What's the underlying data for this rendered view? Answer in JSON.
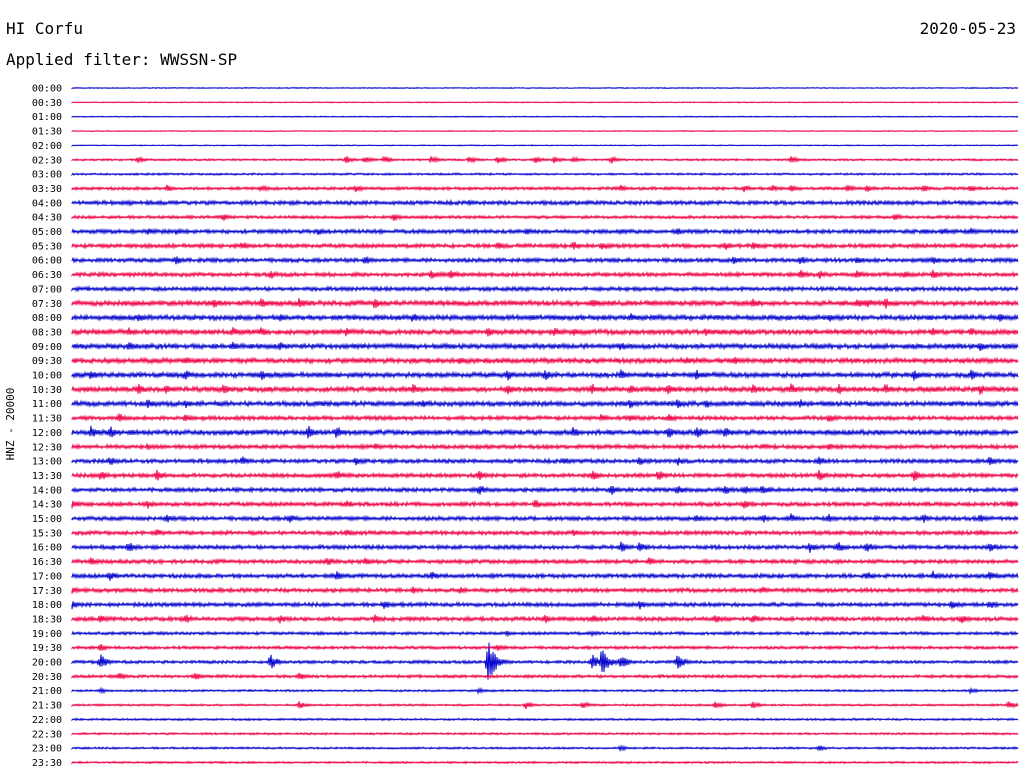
{
  "header": {
    "station": "HI Corfu",
    "date": "2020-05-23",
    "filter_text": "Applied filter: WWSSN-SP"
  },
  "colors": {
    "trace_a": "#0000cc",
    "trace_b": "#ee0044",
    "text": "#000000",
    "background": "#ffffff"
  },
  "chart_data": {
    "type": "seismogram-helicorder",
    "ylabel": "HNZ - 20000",
    "row_labels": [
      "00:00",
      "00:30",
      "01:00",
      "01:30",
      "02:00",
      "02:30",
      "03:00",
      "03:30",
      "04:00",
      "04:30",
      "05:00",
      "05:30",
      "06:00",
      "06:30",
      "07:00",
      "07:30",
      "08:00",
      "08:30",
      "09:00",
      "09:30",
      "10:00",
      "10:30",
      "11:00",
      "11:30",
      "12:00",
      "12:30",
      "13:00",
      "13:30",
      "14:00",
      "14:30",
      "15:00",
      "15:30",
      "16:00",
      "16:30",
      "17:00",
      "17:30",
      "18:00",
      "18:30",
      "19:00",
      "19:30",
      "20:00",
      "20:30",
      "21:00",
      "21:30",
      "22:00",
      "22:30",
      "23:00",
      "23:30"
    ],
    "noise_level": [
      1,
      1,
      1,
      1,
      1,
      2,
      2,
      3,
      4,
      3,
      4,
      4,
      4,
      4,
      4,
      5,
      5,
      5,
      5,
      5,
      5,
      5,
      5,
      4,
      5,
      4,
      4,
      4,
      4,
      4,
      4,
      4,
      4,
      4,
      4,
      4,
      4,
      4,
      3,
      3,
      3,
      3,
      2,
      2,
      2,
      2,
      2,
      2
    ],
    "events": [
      {
        "row": 5,
        "t": [
          0.07,
          0.29,
          0.31,
          0.33,
          0.38,
          0.42,
          0.45,
          0.49,
          0.51,
          0.53,
          0.57,
          0.76
        ],
        "amp": 4
      },
      {
        "row": 7,
        "t": [
          0.1,
          0.2,
          0.3,
          0.58,
          0.71,
          0.74,
          0.76,
          0.82,
          0.84,
          0.9,
          0.95
        ],
        "amp": 4
      },
      {
        "row": 8,
        "t": [
          0.06,
          0.08,
          0.42,
          0.62
        ],
        "amp": 3
      },
      {
        "row": 9,
        "t": [
          0.16,
          0.34,
          0.87
        ],
        "amp": 4
      },
      {
        "row": 10,
        "t": [
          0.08,
          0.11,
          0.26,
          0.48,
          0.58,
          0.64,
          0.9,
          0.92,
          0.95
        ],
        "amp": 4
      },
      {
        "row": 11,
        "t": [
          0.18,
          0.45,
          0.53,
          0.56,
          0.69,
          0.72
        ],
        "amp": 5
      },
      {
        "row": 12,
        "t": [
          0.11,
          0.31,
          0.7,
          0.77,
          0.83,
          0.91
        ],
        "amp": 5
      },
      {
        "row": 13,
        "t": [
          0.21,
          0.38,
          0.4,
          0.77,
          0.79,
          0.83,
          0.88,
          0.91
        ],
        "amp": 5
      },
      {
        "row": 15,
        "t": [
          0.15,
          0.2,
          0.24,
          0.32,
          0.55,
          0.72,
          0.83,
          0.84,
          0.86
        ],
        "amp": 6
      },
      {
        "row": 16,
        "t": [
          0.07,
          0.22,
          0.36,
          0.59,
          0.8,
          0.98
        ],
        "amp": 5
      },
      {
        "row": 17,
        "t": [
          0.06,
          0.17,
          0.2,
          0.29,
          0.44,
          0.51,
          0.53,
          0.67,
          0.91,
          0.95
        ],
        "amp": 5
      },
      {
        "row": 18,
        "t": [
          0.06,
          0.17,
          0.22,
          0.58,
          0.96
        ],
        "amp": 5
      },
      {
        "row": 19,
        "t": [
          0.12,
          0.41,
          0.65,
          0.7
        ],
        "amp": 5
      },
      {
        "row": 20,
        "t": [
          0.02,
          0.12,
          0.2,
          0.46,
          0.5,
          0.58,
          0.66,
          0.89,
          0.95
        ],
        "amp": 6
      },
      {
        "row": 21,
        "t": [
          0.07,
          0.1,
          0.16,
          0.36,
          0.46,
          0.55,
          0.59,
          0.63,
          0.72,
          0.76,
          0.81,
          0.86,
          0.96
        ],
        "amp": 6
      },
      {
        "row": 22,
        "t": [
          0.08,
          0.12,
          0.37,
          0.59,
          0.64,
          0.67,
          0.77
        ],
        "amp": 5
      },
      {
        "row": 23,
        "t": [
          0.05,
          0.12,
          0.56,
          0.59,
          0.63,
          0.8
        ],
        "amp": 5
      },
      {
        "row": 24,
        "t": [
          0.02,
          0.04,
          0.25,
          0.28,
          0.53,
          0.63,
          0.66,
          0.69
        ],
        "amp": 7
      },
      {
        "row": 25,
        "t": [
          0.08,
          0.32,
          0.73,
          0.8
        ],
        "amp": 4
      },
      {
        "row": 26,
        "t": [
          0.04,
          0.18,
          0.3,
          0.52,
          0.6,
          0.64,
          0.79,
          0.97
        ],
        "amp": 5
      },
      {
        "row": 27,
        "t": [
          0.03,
          0.09,
          0.28,
          0.43,
          0.55,
          0.62,
          0.79,
          0.89
        ],
        "amp": 6
      },
      {
        "row": 28,
        "t": [
          0.43,
          0.57,
          0.64,
          0.69,
          0.71,
          0.73
        ],
        "amp": 6
      },
      {
        "row": 29,
        "t": [
          0.0,
          0.08,
          0.29,
          0.49,
          0.71,
          0.99
        ],
        "amp": 5
      },
      {
        "row": 30,
        "t": [
          0.1,
          0.23,
          0.66,
          0.73,
          0.76,
          0.8,
          0.9,
          0.96
        ],
        "amp": 5
      },
      {
        "row": 31,
        "t": [
          0.09,
          0.29,
          0.53,
          0.96
        ],
        "amp": 4
      },
      {
        "row": 32,
        "t": [
          0.06,
          0.58,
          0.6,
          0.78,
          0.81,
          0.84,
          0.97
        ],
        "amp": 6
      },
      {
        "row": 33,
        "t": [
          0.02,
          0.27,
          0.31,
          0.61
        ],
        "amp": 5
      },
      {
        "row": 34,
        "t": [
          0.04,
          0.28,
          0.38,
          0.84,
          0.91,
          0.97
        ],
        "amp": 5
      },
      {
        "row": 35,
        "t": [
          0.0,
          0.36,
          0.41,
          0.73
        ],
        "amp": 4
      },
      {
        "row": 36,
        "t": [
          0.0,
          0.33,
          0.6,
          0.93,
          0.97
        ],
        "amp": 5
      },
      {
        "row": 37,
        "t": [
          0.03,
          0.12,
          0.22,
          0.32,
          0.5,
          0.55,
          0.68,
          0.72,
          0.9,
          0.94
        ],
        "amp": 5
      },
      {
        "row": 38,
        "t": [
          0.46,
          0.55
        ],
        "amp": 3
      },
      {
        "row": 39,
        "t": [
          0.03,
          0.45
        ],
        "amp": 4
      },
      {
        "row": 40,
        "t": [
          0.03,
          0.21,
          0.44,
          0.55,
          0.58,
          0.64
        ],
        "amp": 8
      },
      {
        "row": 40,
        "t": [
          0.44
        ],
        "amp": 22
      },
      {
        "row": 40,
        "t": [
          0.56
        ],
        "amp": 14
      },
      {
        "row": 41,
        "t": [
          0.05,
          0.13,
          0.24
        ],
        "amp": 4
      },
      {
        "row": 42,
        "t": [
          0.03,
          0.43,
          0.95
        ],
        "amp": 3
      },
      {
        "row": 43,
        "t": [
          0.24,
          0.48,
          0.54,
          0.68,
          0.72,
          0.99
        ],
        "amp": 4
      },
      {
        "row": 46,
        "t": [
          0.58,
          0.79
        ],
        "amp": 3
      }
    ]
  }
}
